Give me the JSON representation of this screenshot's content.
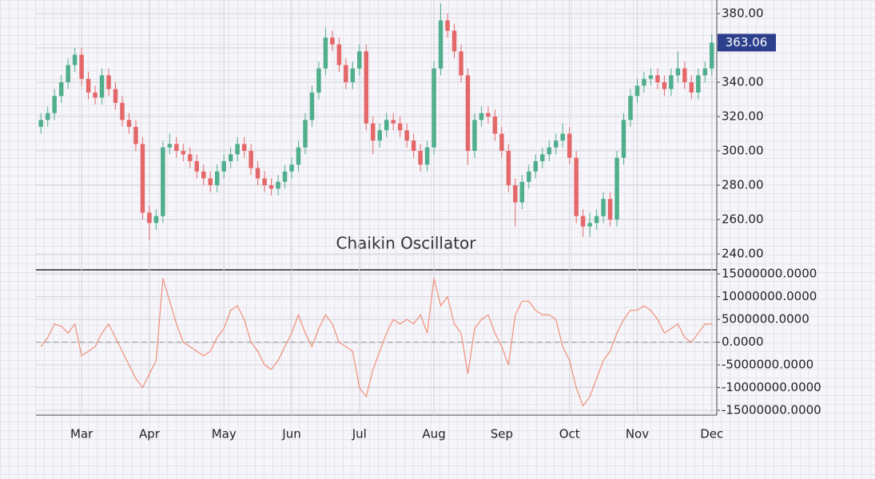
{
  "chart_data": [
    {
      "type": "candlestick",
      "categories": [
        null,
        null,
        null,
        null,
        null,
        null,
        "Mar",
        null,
        null,
        null,
        null,
        null,
        null,
        null,
        null,
        null,
        "Apr",
        null,
        null,
        null,
        null,
        null,
        null,
        null,
        null,
        null,
        null,
        "May",
        null,
        null,
        null,
        null,
        null,
        null,
        null,
        null,
        null,
        "Jun",
        null,
        null,
        null,
        null,
        null,
        null,
        null,
        null,
        null,
        "Jul",
        null,
        null,
        null,
        null,
        null,
        null,
        null,
        null,
        null,
        null,
        "Aug",
        null,
        null,
        null,
        null,
        null,
        null,
        null,
        null,
        null,
        "Sep",
        null,
        null,
        null,
        null,
        null,
        null,
        null,
        null,
        null,
        "Oct",
        null,
        null,
        null,
        null,
        null,
        null,
        null,
        null,
        null,
        "Nov",
        null,
        null,
        null,
        null,
        null,
        null,
        null,
        null,
        null,
        null,
        "Dec"
      ],
      "open": [
        314,
        318,
        322,
        332,
        340,
        350,
        356,
        342,
        334,
        331,
        344,
        336,
        328,
        318,
        314,
        304,
        264,
        258,
        262,
        302,
        304,
        300,
        298,
        294,
        288,
        284,
        280,
        288,
        294,
        298,
        304,
        300,
        290,
        284,
        280,
        278,
        282,
        288,
        292,
        302,
        318,
        334,
        348,
        366,
        362,
        350,
        340,
        348,
        358,
        316,
        306,
        312,
        318,
        316,
        312,
        306,
        300,
        292,
        302,
        348,
        376,
        370,
        358,
        344,
        300,
        318,
        322,
        320,
        310,
        300,
        280,
        270,
        282,
        288,
        294,
        298,
        302,
        306,
        310,
        296,
        262,
        256,
        258,
        262,
        272,
        260,
        296,
        318,
        332,
        338,
        342,
        344,
        340,
        336,
        344,
        348,
        340,
        334,
        344,
        348
      ],
      "high": [
        322,
        326,
        336,
        344,
        354,
        360,
        360,
        346,
        338,
        348,
        348,
        340,
        332,
        322,
        318,
        308,
        268,
        266,
        306,
        310,
        308,
        304,
        302,
        298,
        292,
        288,
        292,
        298,
        302,
        308,
        308,
        304,
        294,
        288,
        284,
        286,
        292,
        296,
        306,
        322,
        338,
        352,
        372,
        370,
        366,
        354,
        352,
        362,
        362,
        320,
        316,
        322,
        322,
        320,
        316,
        310,
        304,
        306,
        352,
        386,
        380,
        374,
        362,
        348,
        322,
        326,
        326,
        324,
        314,
        304,
        284,
        286,
        292,
        298,
        302,
        306,
        310,
        316,
        314,
        300,
        266,
        264,
        266,
        276,
        276,
        300,
        322,
        336,
        342,
        346,
        348,
        348,
        344,
        348,
        358,
        352,
        344,
        348,
        352,
        368
      ],
      "low": [
        310,
        314,
        318,
        328,
        336,
        346,
        338,
        330,
        327,
        327,
        332,
        324,
        314,
        310,
        300,
        260,
        248,
        254,
        258,
        298,
        296,
        294,
        290,
        284,
        280,
        276,
        276,
        284,
        290,
        294,
        296,
        286,
        280,
        276,
        274,
        274,
        278,
        284,
        288,
        298,
        314,
        330,
        344,
        358,
        346,
        336,
        336,
        344,
        312,
        298,
        302,
        308,
        312,
        308,
        302,
        296,
        288,
        288,
        298,
        344,
        366,
        354,
        340,
        292,
        296,
        314,
        316,
        306,
        296,
        276,
        256,
        266,
        278,
        284,
        290,
        294,
        298,
        302,
        292,
        258,
        250,
        250,
        254,
        258,
        256,
        256,
        292,
        314,
        328,
        334,
        338,
        336,
        332,
        332,
        340,
        336,
        330,
        330,
        340,
        344
      ],
      "close": [
        318,
        322,
        332,
        340,
        350,
        356,
        342,
        334,
        331,
        344,
        336,
        328,
        318,
        314,
        304,
        264,
        258,
        262,
        302,
        304,
        300,
        298,
        294,
        288,
        284,
        280,
        288,
        294,
        298,
        304,
        300,
        290,
        284,
        280,
        278,
        282,
        288,
        292,
        302,
        318,
        334,
        348,
        366,
        362,
        350,
        340,
        348,
        358,
        316,
        306,
        312,
        318,
        316,
        312,
        306,
        300,
        292,
        302,
        348,
        376,
        370,
        358,
        344,
        300,
        318,
        322,
        320,
        310,
        300,
        280,
        270,
        282,
        288,
        294,
        298,
        302,
        306,
        310,
        296,
        262,
        256,
        258,
        262,
        272,
        260,
        296,
        318,
        332,
        338,
        342,
        344,
        340,
        336,
        344,
        348,
        340,
        334,
        344,
        348,
        363.06
      ],
      "up_color": "#4fae8c",
      "down_color": "#e4676a",
      "ylim": [
        230.7,
        387.9
      ],
      "yticks": [
        {
          "value": 240,
          "label": "240.00"
        },
        {
          "value": 260,
          "label": "260.00"
        },
        {
          "value": 280,
          "label": "280.00"
        },
        {
          "value": 300,
          "label": "300.00"
        },
        {
          "value": 320,
          "label": "320.00"
        },
        {
          "value": 340,
          "label": "340.00"
        },
        {
          "value": 360,
          "label": "360.00"
        },
        {
          "value": 380,
          "label": "380.00"
        }
      ],
      "grid": true
    },
    {
      "type": "line",
      "title": "Chaikin Oscillator",
      "color": "#f0907a",
      "values": [
        -1000000,
        1000000,
        4000000,
        3500000,
        2000000,
        4000000,
        -3000000,
        -2000000,
        -1000000,
        2000000,
        4000000,
        1000000,
        -2000000,
        -5000000,
        -8000000,
        -10000000,
        -7000000,
        -4000000,
        14000000,
        9000000,
        4000000,
        0,
        -1000000,
        -2000000,
        -3000000,
        -2000000,
        1000000,
        3000000,
        7000000,
        8000000,
        5000000,
        0,
        -2000000,
        -5000000,
        -6000000,
        -4000000,
        -1000000,
        2000000,
        6000000,
        2000000,
        -1000000,
        3000000,
        6000000,
        4000000,
        0,
        -1000000,
        -2000000,
        -10000000,
        -12000000,
        -6000000,
        -2000000,
        2000000,
        5000000,
        4000000,
        5000000,
        4000000,
        6000000,
        2000000,
        14000000,
        8000000,
        10000000,
        4000000,
        2000000,
        -7000000,
        3000000,
        5000000,
        6000000,
        2000000,
        -1000000,
        -5000000,
        6000000,
        9000000,
        9000000,
        7000000,
        6000000,
        6000000,
        5000000,
        -1000000,
        -4000000,
        -10000000,
        -14000000,
        -12000000,
        -8000000,
        -4000000,
        -2000000,
        2000000,
        5000000,
        7000000,
        7000000,
        8000000,
        7000000,
        5000000,
        2000000,
        3000000,
        4000000,
        1000000,
        0,
        2000000,
        4000000,
        4000000
      ],
      "ylim": [
        -16050000,
        15900000
      ],
      "yticks": [
        {
          "value": -15000000,
          "label": "-15000000.0000"
        },
        {
          "value": -10000000,
          "label": "-10000000.0000"
        },
        {
          "value": -5000000,
          "label": "-5000000.0000"
        },
        {
          "value": 0,
          "label": "0.0000"
        },
        {
          "value": 5000000,
          "label": "5000000.0000"
        },
        {
          "value": 10000000,
          "label": "10000000.0000"
        },
        {
          "value": 15000000,
          "label": "15000000.0000"
        }
      ],
      "zero_line": true,
      "grid": true
    }
  ]
}
